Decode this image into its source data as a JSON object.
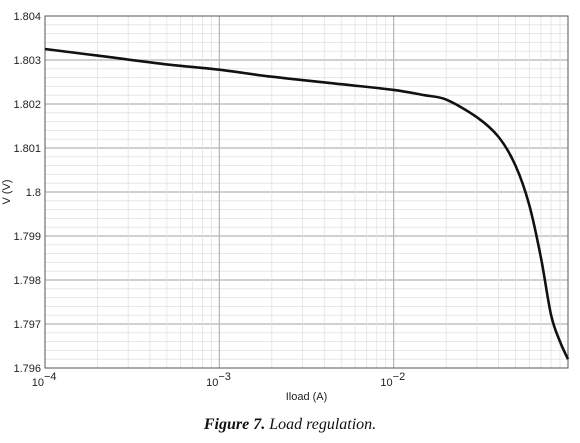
{
  "chart_data": {
    "type": "line",
    "title": "",
    "xlabel": "Iload (A)",
    "ylabel": "V (V)",
    "x_scale": "log",
    "xlim": [
      0.0001,
      0.1
    ],
    "ylim": [
      1.796,
      1.804
    ],
    "grid": true,
    "x_ticks": [
      {
        "value": 0.0001,
        "base": "10",
        "exp": "−4"
      },
      {
        "value": 0.001,
        "base": "10",
        "exp": "−3"
      },
      {
        "value": 0.01,
        "base": "10",
        "exp": "−2"
      }
    ],
    "y_ticks": [
      {
        "value": 1.804,
        "label": "1.804"
      },
      {
        "value": 1.803,
        "label": "1.803"
      },
      {
        "value": 1.802,
        "label": "1.802"
      },
      {
        "value": 1.801,
        "label": "1.801"
      },
      {
        "value": 1.8,
        "label": "1.8"
      },
      {
        "value": 1.799,
        "label": "1.799"
      },
      {
        "value": 1.798,
        "label": "1.798"
      },
      {
        "value": 1.797,
        "label": "1.797"
      },
      {
        "value": 1.796,
        "label": "1.796"
      }
    ],
    "series": [
      {
        "color": "#111111",
        "x": [
          0.0001,
          0.0002,
          0.0005,
          0.001,
          0.002,
          0.005,
          0.01,
          0.015,
          0.02,
          0.03,
          0.04,
          0.05,
          0.06,
          0.07,
          0.08,
          0.09,
          0.1
        ],
        "y": [
          1.80325,
          1.8031,
          1.8029,
          1.80278,
          1.80262,
          1.80245,
          1.80232,
          1.8022,
          1.8021,
          1.8017,
          1.80125,
          1.8006,
          1.7997,
          1.7985,
          1.7972,
          1.7966,
          1.7962
        ]
      }
    ]
  },
  "caption": {
    "figure_label": "Figure 7.",
    "text": "Load regulation."
  }
}
